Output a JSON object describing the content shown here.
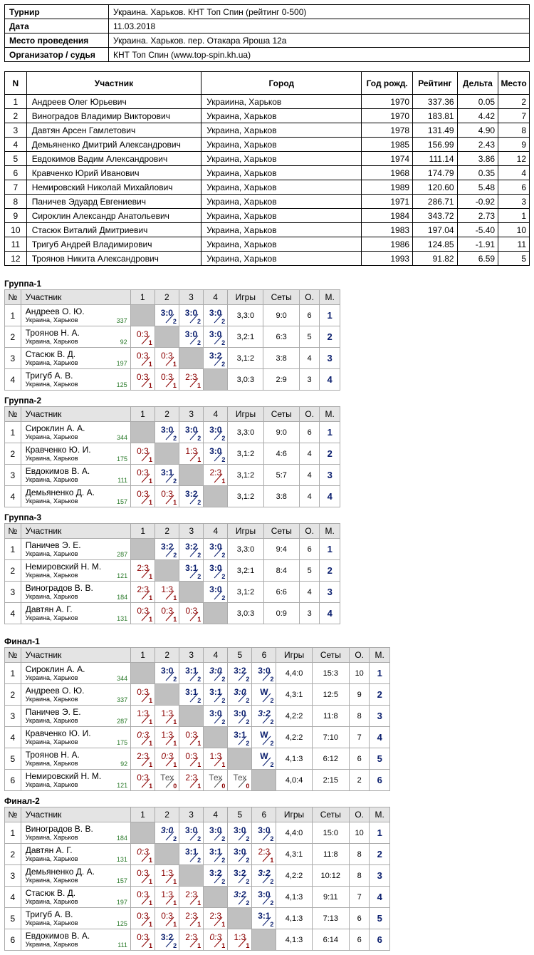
{
  "info": [
    {
      "k": "Турнир",
      "v": "Украина. Харьков. КНТ Топ Спин (рейтинг 0-500)"
    },
    {
      "k": "Дата",
      "v": "11.03.2018"
    },
    {
      "k": "Место проведения",
      "v": "Украина. Харьков. пер. Отакара Яроша 12а"
    },
    {
      "k": "Организатор / судья",
      "v": "КНТ Топ Спин (www.top-spin.kh.ua)"
    }
  ],
  "participants_header": {
    "n": "N",
    "name": "Участник",
    "city": "Город",
    "year": "Год рожд.",
    "rating": "Рейтинг",
    "delta": "Дельта",
    "place": "Место"
  },
  "participants": [
    {
      "n": "1",
      "name": "Андреев Олег Юрьевич",
      "city": "Украиина, Харьков",
      "year": "1970",
      "rating": "337.36",
      "delta": "0.05",
      "place": "2"
    },
    {
      "n": "2",
      "name": "Виноградов Владимир Викторович",
      "city": "Украина, Харьков",
      "year": "1970",
      "rating": "183.81",
      "delta": "4.42",
      "place": "7"
    },
    {
      "n": "3",
      "name": "Давтян Арсен Гамлетович",
      "city": "Украина, Харьков",
      "year": "1978",
      "rating": "131.49",
      "delta": "4.90",
      "place": "8"
    },
    {
      "n": "4",
      "name": "Демьяненко Дмитрий Александрович",
      "city": "Украина, Харьков",
      "year": "1985",
      "rating": "156.99",
      "delta": "2.43",
      "place": "9"
    },
    {
      "n": "5",
      "name": "Евдокимов Вадим Александрович",
      "city": "Украина, Харьков",
      "year": "1974",
      "rating": "111.14",
      "delta": "3.86",
      "place": "12"
    },
    {
      "n": "6",
      "name": "Кравченко Юрий Иванович",
      "city": "Украина, Харьков",
      "year": "1968",
      "rating": "174.79",
      "delta": "0.35",
      "place": "4"
    },
    {
      "n": "7",
      "name": "Немировский Николай Михайлович",
      "city": "Украина, Харьков",
      "year": "1989",
      "rating": "120.60",
      "delta": "5.48",
      "place": "6"
    },
    {
      "n": "8",
      "name": "Паничев Эдуард Евгениевич",
      "city": "Украина, Харьков",
      "year": "1971",
      "rating": "286.71",
      "delta": "-0.92",
      "place": "3"
    },
    {
      "n": "9",
      "name": "Сироклин Александр Анатольевич",
      "city": "Украина, Харьков",
      "year": "1984",
      "rating": "343.72",
      "delta": "2.73",
      "place": "1"
    },
    {
      "n": "10",
      "name": "Стасюк Виталий Дмитриевич",
      "city": "Украина, Харьков",
      "year": "1983",
      "rating": "197.04",
      "delta": "-5.40",
      "place": "10"
    },
    {
      "n": "11",
      "name": "Тригуб Андрей Владимирович",
      "city": "Украина, Харьков",
      "year": "1986",
      "rating": "124.85",
      "delta": "-1.91",
      "place": "11"
    },
    {
      "n": "12",
      "name": "Троянов Никита Александрович",
      "city": "Украина, Харьков",
      "year": "1993",
      "rating": "91.82",
      "delta": "6.59",
      "place": "5"
    }
  ],
  "groups_header": {
    "n": "№",
    "name": "Участник",
    "games": "Игры",
    "sets": "Сеты",
    "o": "О.",
    "m": "М."
  },
  "groups": [
    {
      "title": "Группа-1",
      "size": 4,
      "rows": [
        {
          "n": "1",
          "name": "Андреев О. Ю.",
          "city": "Украина, Харьков",
          "rating": "337",
          "cells": [
            null,
            [
              "3:0",
              "2",
              "w"
            ],
            [
              "3:0",
              "2",
              "w"
            ],
            [
              "3:0",
              "2",
              "w"
            ]
          ],
          "games": "3,3:0",
          "sets": "9:0",
          "o": "6",
          "m": "1"
        },
        {
          "n": "2",
          "name": "Троянов Н. А.",
          "city": "Украина, Харьков",
          "rating": "92",
          "cells": [
            [
              "0:3",
              "1",
              "l"
            ],
            null,
            [
              "3:0",
              "2",
              "w"
            ],
            [
              "3:0",
              "2",
              "w"
            ]
          ],
          "games": "3,2:1",
          "sets": "6:3",
          "o": "5",
          "m": "2"
        },
        {
          "n": "3",
          "name": "Стасюк В. Д.",
          "city": "Украина, Харьков",
          "rating": "197",
          "cells": [
            [
              "0:3",
              "1",
              "l"
            ],
            [
              "0:3",
              "1",
              "l"
            ],
            null,
            [
              "3:2",
              "2",
              "w"
            ]
          ],
          "games": "3,1:2",
          "sets": "3:8",
          "o": "4",
          "m": "3"
        },
        {
          "n": "4",
          "name": "Тригуб А. В.",
          "city": "Украина, Харьков",
          "rating": "125",
          "cells": [
            [
              "0:3",
              "1",
              "l"
            ],
            [
              "0:3",
              "1",
              "l"
            ],
            [
              "2:3",
              "1",
              "l"
            ],
            null
          ],
          "games": "3,0:3",
          "sets": "2:9",
          "o": "3",
          "m": "4"
        }
      ]
    },
    {
      "title": "Группа-2",
      "size": 4,
      "rows": [
        {
          "n": "1",
          "name": "Сироклин А. А.",
          "city": "Украина, Харьков",
          "rating": "344",
          "cells": [
            null,
            [
              "3:0",
              "2",
              "w"
            ],
            [
              "3:0",
              "2",
              "w"
            ],
            [
              "3:0",
              "2",
              "w"
            ]
          ],
          "games": "3,3:0",
          "sets": "9:0",
          "o": "6",
          "m": "1"
        },
        {
          "n": "2",
          "name": "Кравченко Ю. И.",
          "city": "Украина, Харьков",
          "rating": "175",
          "cells": [
            [
              "0:3",
              "1",
              "l"
            ],
            null,
            [
              "1:3",
              "1",
              "l"
            ],
            [
              "3:0",
              "2",
              "w"
            ]
          ],
          "games": "3,1:2",
          "sets": "4:6",
          "o": "4",
          "m": "2"
        },
        {
          "n": "3",
          "name": "Евдокимов В. А.",
          "city": "Украина, Харьков",
          "rating": "111",
          "cells": [
            [
              "0:3",
              "1",
              "l"
            ],
            [
              "3:1",
              "2",
              "w"
            ],
            null,
            [
              "2:3",
              "1",
              "l"
            ]
          ],
          "games": "3,1:2",
          "sets": "5:7",
          "o": "4",
          "m": "3"
        },
        {
          "n": "4",
          "name": "Демьяненко Д. А.",
          "city": "Украина, Харьков",
          "rating": "157",
          "cells": [
            [
              "0:3",
              "1",
              "l"
            ],
            [
              "0:3",
              "1",
              "l"
            ],
            [
              "3:2",
              "2",
              "w"
            ],
            null
          ],
          "games": "3,1:2",
          "sets": "3:8",
          "o": "4",
          "m": "4"
        }
      ]
    },
    {
      "title": "Группа-3",
      "size": 4,
      "rows": [
        {
          "n": "1",
          "name": "Паничев Э. Е.",
          "city": "Украина, Харьков",
          "rating": "287",
          "cells": [
            null,
            [
              "3:2",
              "2",
              "w"
            ],
            [
              "3:2",
              "2",
              "w"
            ],
            [
              "3:0",
              "2",
              "w"
            ]
          ],
          "games": "3,3:0",
          "sets": "9:4",
          "o": "6",
          "m": "1"
        },
        {
          "n": "2",
          "name": "Немировский Н. М.",
          "city": "Украина, Харьков",
          "rating": "121",
          "cells": [
            [
              "2:3",
              "1",
              "l"
            ],
            null,
            [
              "3:1",
              "2",
              "w"
            ],
            [
              "3:0",
              "2",
              "w"
            ]
          ],
          "games": "3,2:1",
          "sets": "8:4",
          "o": "5",
          "m": "2"
        },
        {
          "n": "3",
          "name": "Виноградов В. В.",
          "city": "Украина, Харьков",
          "rating": "184",
          "cells": [
            [
              "2:3",
              "1",
              "l"
            ],
            [
              "1:3",
              "1",
              "l"
            ],
            null,
            [
              "3:0",
              "2",
              "w"
            ]
          ],
          "games": "3,1:2",
          "sets": "6:6",
          "o": "4",
          "m": "3"
        },
        {
          "n": "4",
          "name": "Давтян А. Г.",
          "city": "Украина, Харьков",
          "rating": "131",
          "cells": [
            [
              "0:3",
              "1",
              "l"
            ],
            [
              "0:3",
              "1",
              "l"
            ],
            [
              "0:3",
              "1",
              "l"
            ],
            null
          ],
          "games": "3,0:3",
          "sets": "0:9",
          "o": "3",
          "m": "4"
        }
      ]
    },
    {
      "title": "Финал-1",
      "size": 6,
      "rows": [
        {
          "n": "1",
          "name": "Сироклин А. А.",
          "city": "Украина, Харьков",
          "rating": "344",
          "cells": [
            null,
            [
              "3:0",
              "2",
              "w"
            ],
            [
              "3:1",
              "2",
              "w"
            ],
            [
              "3:0",
              "2",
              "wi"
            ],
            [
              "3:2",
              "2",
              "w"
            ],
            [
              "3:0",
              "2",
              "w"
            ]
          ],
          "games": "4,4:0",
          "sets": "15:3",
          "o": "10",
          "m": "1"
        },
        {
          "n": "2",
          "name": "Андреев О. Ю.",
          "city": "Украина, Харьков",
          "rating": "337",
          "cells": [
            [
              "0:3",
              "1",
              "l"
            ],
            null,
            [
              "3:1",
              "2",
              "w"
            ],
            [
              "3:1",
              "2",
              "w"
            ],
            [
              "3:0",
              "2",
              "wi"
            ],
            [
              "W",
              "2",
              "w"
            ]
          ],
          "games": "4,3:1",
          "sets": "12:5",
          "o": "9",
          "m": "2"
        },
        {
          "n": "3",
          "name": "Паничев Э. Е.",
          "city": "Украина, Харьков",
          "rating": "287",
          "cells": [
            [
              "1:3",
              "1",
              "l"
            ],
            [
              "1:3",
              "1",
              "l"
            ],
            null,
            [
              "3:0",
              "2",
              "w"
            ],
            [
              "3:0",
              "2",
              "w"
            ],
            [
              "3:2",
              "2",
              "wi"
            ]
          ],
          "games": "4,2:2",
          "sets": "11:8",
          "o": "8",
          "m": "3"
        },
        {
          "n": "4",
          "name": "Кравченко Ю. И.",
          "city": "Украина, Харьков",
          "rating": "175",
          "cells": [
            [
              "0:3",
              "1",
              "li"
            ],
            [
              "1:3",
              "1",
              "l"
            ],
            [
              "0:3",
              "1",
              "l"
            ],
            null,
            [
              "3:1",
              "2",
              "w"
            ],
            [
              "W",
              "2",
              "w"
            ]
          ],
          "games": "4,2:2",
          "sets": "7:10",
          "o": "7",
          "m": "4"
        },
        {
          "n": "5",
          "name": "Троянов Н. А.",
          "city": "Украина, Харьков",
          "rating": "92",
          "cells": [
            [
              "2:3",
              "1",
              "l"
            ],
            [
              "0:3",
              "1",
              "li"
            ],
            [
              "0:3",
              "1",
              "l"
            ],
            [
              "1:3",
              "1",
              "l"
            ],
            null,
            [
              "W",
              "2",
              "w"
            ]
          ],
          "games": "4,1:3",
          "sets": "6:12",
          "o": "6",
          "m": "5"
        },
        {
          "n": "6",
          "name": "Немировский Н. М.",
          "city": "Украина, Харьков",
          "rating": "121",
          "cells": [
            [
              "0:3",
              "1",
              "l"
            ],
            [
              "Тех",
              "0",
              "t"
            ],
            [
              "2:3",
              "1",
              "l"
            ],
            [
              "Тех",
              "0",
              "t"
            ],
            [
              "Тех",
              "0",
              "t"
            ],
            null
          ],
          "games": "4,0:4",
          "sets": "2:15",
          "o": "2",
          "m": "6"
        }
      ]
    },
    {
      "title": "Финал-2",
      "size": 6,
      "rows": [
        {
          "n": "1",
          "name": "Виноградов В. В.",
          "city": "Украина, Харьков",
          "rating": "184",
          "cells": [
            null,
            [
              "3:0",
              "2",
              "wi"
            ],
            [
              "3:0",
              "2",
              "w"
            ],
            [
              "3:0",
              "2",
              "w"
            ],
            [
              "3:0",
              "2",
              "w"
            ],
            [
              "3:0",
              "2",
              "w"
            ]
          ],
          "games": "4,4:0",
          "sets": "15:0",
          "o": "10",
          "m": "1"
        },
        {
          "n": "2",
          "name": "Давтян А. Г.",
          "city": "Украина, Харьков",
          "rating": "131",
          "cells": [
            [
              "0:3",
              "1",
              "li"
            ],
            null,
            [
              "3:1",
              "2",
              "w"
            ],
            [
              "3:1",
              "2",
              "w"
            ],
            [
              "3:0",
              "2",
              "w"
            ],
            [
              "2:3",
              "1",
              "l"
            ]
          ],
          "games": "4,3:1",
          "sets": "11:8",
          "o": "8",
          "m": "2"
        },
        {
          "n": "3",
          "name": "Демьяненко Д. А.",
          "city": "Украина, Харьков",
          "rating": "157",
          "cells": [
            [
              "0:3",
              "1",
              "l"
            ],
            [
              "1:3",
              "1",
              "l"
            ],
            null,
            [
              "3:2",
              "2",
              "w"
            ],
            [
              "3:2",
              "2",
              "w"
            ],
            [
              "3:2",
              "2",
              "wi"
            ]
          ],
          "games": "4,2:2",
          "sets": "10:12",
          "o": "8",
          "m": "3"
        },
        {
          "n": "4",
          "name": "Стасюк В. Д.",
          "city": "Украина, Харьков",
          "rating": "197",
          "cells": [
            [
              "0:3",
              "1",
              "l"
            ],
            [
              "1:3",
              "1",
              "l"
            ],
            [
              "2:3",
              "1",
              "l"
            ],
            null,
            [
              "3:2",
              "2",
              "wi"
            ],
            [
              "3:0",
              "2",
              "w"
            ]
          ],
          "games": "4,1:3",
          "sets": "9:11",
          "o": "7",
          "m": "4"
        },
        {
          "n": "5",
          "name": "Тригуб А. В.",
          "city": "Украина, Харьков",
          "rating": "125",
          "cells": [
            [
              "0:3",
              "1",
              "l"
            ],
            [
              "0:3",
              "1",
              "l"
            ],
            [
              "2:3",
              "1",
              "l"
            ],
            [
              "2:3",
              "1",
              "l"
            ],
            null,
            [
              "3:1",
              "2",
              "w"
            ]
          ],
          "games": "4,1:3",
          "sets": "7:13",
          "o": "6",
          "m": "5"
        },
        {
          "n": "6",
          "name": "Евдокимов В. А.",
          "city": "Украина, Харьков",
          "rating": "111",
          "cells": [
            [
              "0:3",
              "1",
              "l"
            ],
            [
              "3:2",
              "2",
              "w"
            ],
            [
              "2:3",
              "1",
              "l"
            ],
            [
              "0:3",
              "1",
              "li"
            ],
            [
              "1:3",
              "1",
              "l"
            ],
            null
          ],
          "games": "4,1:3",
          "sets": "6:14",
          "o": "6",
          "m": "6"
        }
      ]
    }
  ]
}
